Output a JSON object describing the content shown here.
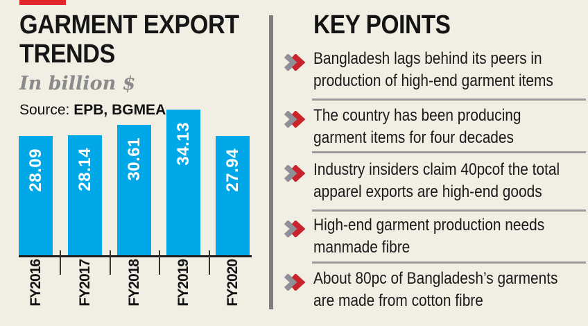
{
  "page": {
    "background_color": "#f1eee4",
    "accent_red": "#e2242b",
    "divider_color": "#7d7d7d",
    "separator_color": "#9b9b9b"
  },
  "chart_panel": {
    "title_lines": [
      "GARMENT EXPORT",
      "TRENDS"
    ],
    "subtitle": "In billion $",
    "source_label": "Source:",
    "source_value": "EPB, BGMEA"
  },
  "chart_data": {
    "type": "bar",
    "title": "GARMENT EXPORT TRENDS",
    "unit_label": "In billion $",
    "source": "EPB, BGMEA",
    "categories": [
      "FY2016",
      "FY2017",
      "FY2018",
      "FY2019",
      "FY2020"
    ],
    "values": [
      28.09,
      28.14,
      30.61,
      34.13,
      27.94
    ],
    "ylim": [
      0,
      34.13
    ],
    "bar_color": "#00a8e8",
    "value_label_color": "#ffffff",
    "orientation": "vertical",
    "value_labels_rotated": true,
    "grid": false,
    "legend": false
  },
  "key_points": {
    "heading": "KEY POINTS",
    "bullet_colors": {
      "gray": "#8f8f97",
      "red": "#c9242b"
    },
    "items": [
      {
        "lines": [
          "Bangladesh lags behind its peers in",
          "production of high-end garment items"
        ]
      },
      {
        "lines": [
          "The country has been producing",
          "garment items for four decades"
        ]
      },
      {
        "lines": [
          "Industry insiders claim 40pcof the total",
          "apparel exports are high-end goods"
        ]
      },
      {
        "lines": [
          "High-end garment production needs",
          "manmade fibre"
        ]
      },
      {
        "lines": [
          "About 80pc of Bangladesh’s garments",
          "are made from cotton fibre"
        ]
      }
    ]
  }
}
